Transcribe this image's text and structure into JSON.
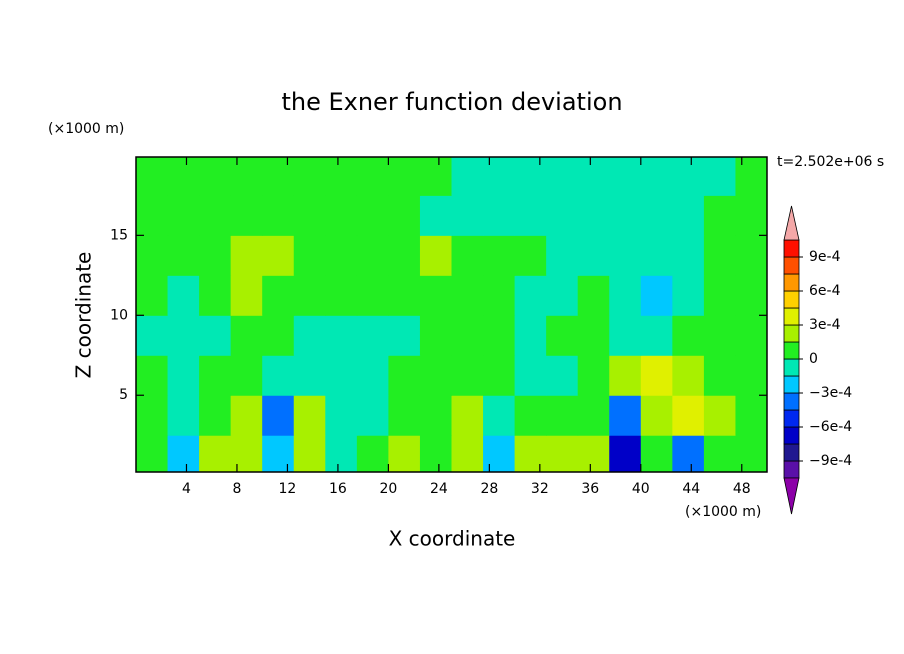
{
  "chart_data": {
    "type": "contour",
    "title": "the Exner function deviation",
    "x_label": "X coordinate",
    "y_label": "Z coordinate",
    "x_unit": "(×1000 m)",
    "y_unit": "(×1000 m)",
    "annotation": "t=2.502e+06 s",
    "xlim": [
      0,
      50
    ],
    "ylim": [
      0.2,
      19.9
    ],
    "xticks": [
      4,
      8,
      12,
      16,
      20,
      24,
      28,
      32,
      36,
      40,
      44,
      48
    ],
    "yticks": [
      5,
      10,
      15
    ],
    "x": [
      1.25,
      3.75,
      6.25,
      8.75,
      11.25,
      13.75,
      16.25,
      18.75,
      21.25,
      23.75,
      26.25,
      28.75,
      31.25,
      33.75,
      36.25,
      38.75,
      41.25,
      43.75,
      46.25,
      48.75
    ],
    "y": [
      1.25,
      3.75,
      6.25,
      8.75,
      11.25,
      13.75,
      16.25,
      18.75
    ],
    "values": [
      [
        0.0001,
        -0.0002,
        0.0002,
        0.0002,
        -0.0002,
        0.0002,
        -0.0001,
        0.0001,
        0.0002,
        0.0001,
        0.0002,
        -0.0002,
        0.0002,
        0.0002,
        0.0002,
        -0.0007,
        0.0001,
        -0.0004,
        0.0001,
        0.0001
      ],
      [
        0.0001,
        -0.0001,
        0.0001,
        0.0002,
        -0.0004,
        0.0002,
        -0.0001,
        -0.0001,
        0.0001,
        0.0001,
        0.0002,
        -0.0001,
        0.0001,
        0.0001,
        0.0001,
        -0.0004,
        0.0002,
        0.0004,
        0.0002,
        0.0001
      ],
      [
        0.0001,
        -0.0001,
        0.0001,
        0.0001,
        -0.0001,
        -0.0001,
        -0.0001,
        -0.0001,
        0.0001,
        0.0001,
        0.0001,
        0.0001,
        -0.0001,
        -0.0001,
        0.0001,
        0.0002,
        0.0004,
        0.0002,
        0.0001,
        0.0001
      ],
      [
        -0.0001,
        -0.0001,
        -0.0001,
        0.0001,
        0.0001,
        -0.0001,
        -0.0001,
        -0.0001,
        -0.0001,
        0.0001,
        0.0001,
        0.0001,
        -0.0001,
        0.0001,
        0.0001,
        -0.0001,
        -0.0001,
        0.0001,
        0.0001,
        0.0001
      ],
      [
        0.0001,
        -0.0001,
        0.0001,
        0.0002,
        0.0001,
        0.0001,
        0.0001,
        0.0001,
        0.0001,
        0.0001,
        0.0001,
        0.0001,
        -0.0001,
        -0.0001,
        0.0001,
        -0.0001,
        -0.0002,
        -0.0001,
        0.0001,
        0.0001
      ],
      [
        0.0001,
        0.0001,
        0.0001,
        0.0002,
        0.0002,
        0.0001,
        0.0001,
        0.0001,
        0.0001,
        0.0002,
        0.0001,
        0.0001,
        0.0001,
        -0.0001,
        -0.0001,
        -0.0001,
        -0.0001,
        -0.0001,
        0.0001,
        0.0001
      ],
      [
        0.0001,
        0.0001,
        0.0001,
        0.0001,
        0.0001,
        0.0001,
        0.0001,
        0.0001,
        0.0001,
        -0.0001,
        -0.0001,
        -0.0001,
        -0.0001,
        -0.0001,
        -0.0001,
        -0.0001,
        -0.0001,
        -0.0001,
        0.0001,
        0.0001
      ],
      [
        0.0001,
        0.0001,
        0.0001,
        0.0001,
        0.0001,
        0.0001,
        0.0001,
        0.0001,
        0.0001,
        0.0001,
        -0.0001,
        -0.0001,
        -0.0001,
        -0.0001,
        -0.0001,
        -0.0001,
        -0.0001,
        -0.0001,
        -0.0001,
        0.0001
      ]
    ],
    "levels": [
      -0.00105,
      -0.0009,
      -0.00075,
      -0.0006,
      -0.00045,
      -0.0003,
      -0.00015,
      0,
      0.00015,
      0.0003,
      0.00045,
      0.0006,
      0.00075,
      0.0009,
      0.00105
    ],
    "colors": [
      "#5a10a8",
      "#201890",
      "#0000c8",
      "#0028f0",
      "#0070ff",
      "#00c8ff",
      "#00e8b4",
      "#22ee22",
      "#a8f000",
      "#e0f000",
      "#ffd000",
      "#ff9800",
      "#ff5000",
      "#ff1000"
    ],
    "extend_colors": [
      "#8c00a8",
      "#f4a8a8"
    ],
    "colorbar_ticks": [
      {
        "value": 0.0009,
        "label": "9e-4"
      },
      {
        "value": 0.0006,
        "label": "6e-4"
      },
      {
        "value": 0.0003,
        "label": "3e-4"
      },
      0,
      {
        "value": -0.0003,
        "label": "−3e-4"
      },
      {
        "value": -0.0006,
        "label": "−6e-4"
      },
      {
        "value": -0.0009,
        "label": "−9e-4"
      }
    ]
  }
}
